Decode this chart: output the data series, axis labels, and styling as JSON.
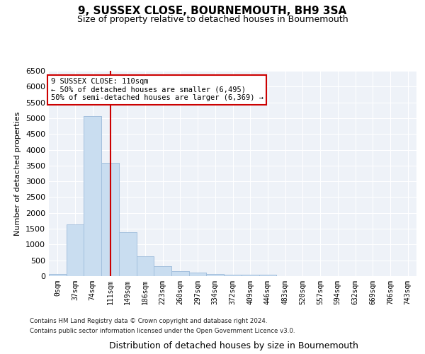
{
  "title": "9, SUSSEX CLOSE, BOURNEMOUTH, BH9 3SA",
  "subtitle": "Size of property relative to detached houses in Bournemouth",
  "xlabel": "Distribution of detached houses by size in Bournemouth",
  "ylabel": "Number of detached properties",
  "bar_color": "#c9ddf0",
  "bar_edge_color": "#a0bedc",
  "background_color": "#eef2f8",
  "grid_color": "#ffffff",
  "categories": [
    "0sqm",
    "37sqm",
    "74sqm",
    "111sqm",
    "149sqm",
    "186sqm",
    "223sqm",
    "260sqm",
    "297sqm",
    "334sqm",
    "372sqm",
    "409sqm",
    "446sqm",
    "483sqm",
    "520sqm",
    "557sqm",
    "594sqm",
    "632sqm",
    "669sqm",
    "706sqm",
    "743sqm"
  ],
  "values": [
    75,
    1640,
    5060,
    3590,
    1400,
    620,
    310,
    155,
    105,
    65,
    55,
    50,
    50,
    0,
    0,
    0,
    0,
    0,
    0,
    0,
    0
  ],
  "property_line_x": 3,
  "property_line_color": "#cc0000",
  "annotation_line1": "9 SUSSEX CLOSE: 110sqm",
  "annotation_line2": "← 50% of detached houses are smaller (6,495)",
  "annotation_line3": "50% of semi-detached houses are larger (6,369) →",
  "annotation_box_color": "#ffffff",
  "annotation_box_edge": "#cc0000",
  "ylim": [
    0,
    6500
  ],
  "yticks": [
    0,
    500,
    1000,
    1500,
    2000,
    2500,
    3000,
    3500,
    4000,
    4500,
    5000,
    5500,
    6000,
    6500
  ],
  "footer_line1": "Contains HM Land Registry data © Crown copyright and database right 2024.",
  "footer_line2": "Contains public sector information licensed under the Open Government Licence v3.0."
}
